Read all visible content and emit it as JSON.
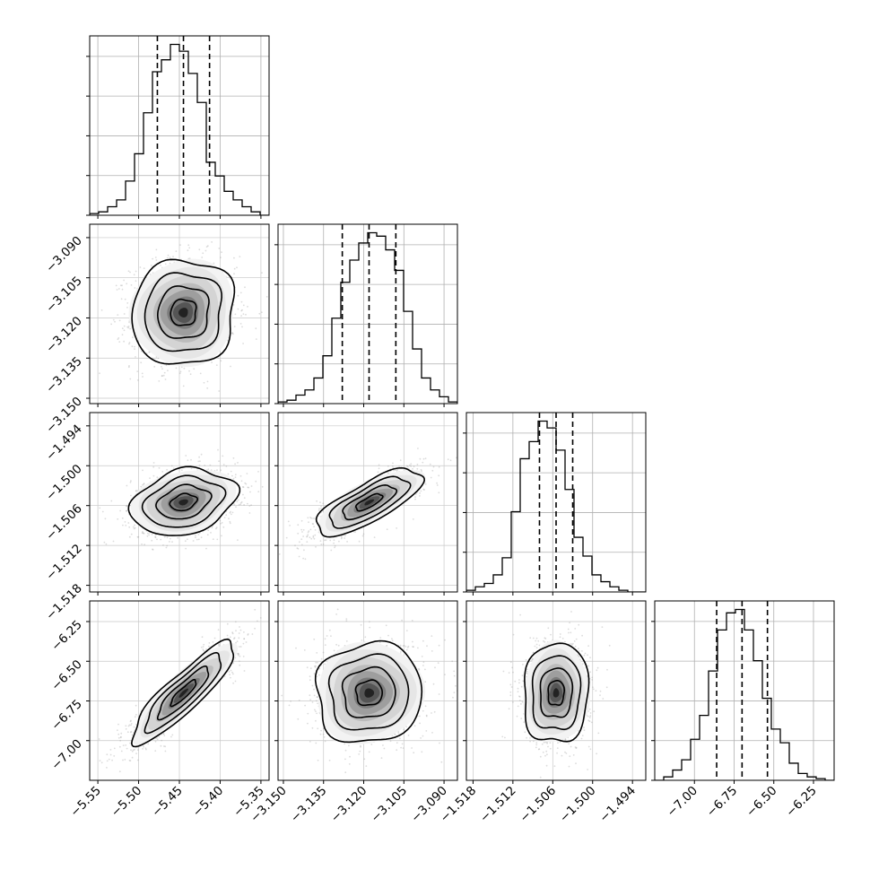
{
  "chart_data": {
    "type": "corner",
    "parameters": [
      {
        "mean": -5.445,
        "sd": 0.032,
        "q16": -5.477,
        "q50": -5.445,
        "q84": -5.413,
        "range": [
          -5.56,
          -5.34
        ],
        "ticks": [
          -5.55,
          -5.5,
          -5.45,
          -5.4,
          -5.35
        ],
        "tick_labels": [
          "−5.55",
          "−5.50",
          "−5.45",
          "−5.40",
          "−5.35"
        ],
        "hist": [
          0.01,
          0.02,
          0.05,
          0.09,
          0.2,
          0.36,
          0.6,
          0.84,
          0.91,
          1.0,
          0.96,
          0.83,
          0.66,
          0.31,
          0.23,
          0.14,
          0.09,
          0.05,
          0.02,
          0.0
        ]
      },
      {
        "mean": -3.118,
        "sd": 0.01,
        "q16": -3.128,
        "q50": -3.118,
        "q84": -3.108,
        "range": [
          -3.152,
          -3.085
        ],
        "ticks": [
          -3.15,
          -3.135,
          -3.12,
          -3.105,
          -3.09
        ],
        "tick_labels": [
          "−3.150",
          "−3.135",
          "−3.120",
          "−3.105",
          "−3.090"
        ],
        "hist": [
          0.01,
          0.02,
          0.05,
          0.08,
          0.15,
          0.28,
          0.5,
          0.71,
          0.84,
          0.94,
          1.0,
          0.98,
          0.9,
          0.78,
          0.54,
          0.32,
          0.15,
          0.08,
          0.04,
          0.01
        ]
      },
      {
        "mean": -1.5055,
        "sd": 0.0025,
        "q16": -1.508,
        "q50": -1.5055,
        "q84": -1.503,
        "range": [
          -1.519,
          -1.492
        ],
        "ticks": [
          -1.518,
          -1.512,
          -1.506,
          -1.5,
          -1.494
        ],
        "tick_labels": [
          "−1.518",
          "−1.512",
          "−1.506",
          "−1.500",
          "−1.494"
        ],
        "hist": [
          0.01,
          0.03,
          0.05,
          0.1,
          0.2,
          0.47,
          0.78,
          0.88,
          1.0,
          0.96,
          0.83,
          0.6,
          0.32,
          0.21,
          0.1,
          0.06,
          0.03,
          0.01,
          0.0,
          0.0
        ]
      },
      {
        "mean": -6.7,
        "sd": 0.16,
        "q16": -6.86,
        "q50": -6.7,
        "q84": -6.54,
        "range": [
          -7.25,
          -6.12
        ],
        "ticks": [
          -7.0,
          -6.75,
          -6.5,
          -6.25
        ],
        "tick_labels": [
          "−7.00",
          "−6.75",
          "−6.50",
          "−6.25"
        ],
        "hist": [
          0.0,
          0.02,
          0.06,
          0.12,
          0.24,
          0.38,
          0.64,
          0.88,
          0.98,
          1.0,
          0.88,
          0.7,
          0.48,
          0.3,
          0.22,
          0.1,
          0.04,
          0.02,
          0.01,
          0.0
        ]
      }
    ],
    "correlations": {
      "1-0": 0.05,
      "2-0": 0.25,
      "2-1": 0.75,
      "3-0": 0.88,
      "3-1": 0.05,
      "3-2": 0.05
    },
    "contour_levels_sigma": [
      0.5,
      1.0,
      1.5,
      2.0
    ],
    "quantiles": [
      0.16,
      0.5,
      0.84
    ],
    "grid": true
  }
}
